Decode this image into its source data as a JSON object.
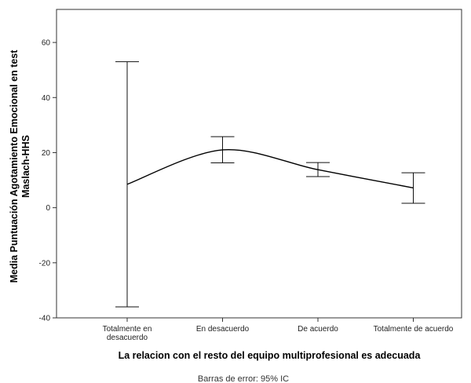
{
  "chart_data": {
    "type": "line",
    "categories": [
      "Totalmente en desacuerdo",
      "En desacuerdo",
      "De acuerdo",
      "Totalmente de acuerdo"
    ],
    "category_lines": [
      [
        "Totalmente en",
        "desacuerdo"
      ],
      [
        "En desacuerdo"
      ],
      [
        "De acuerdo"
      ],
      [
        "Totalmente de acuerdo"
      ]
    ],
    "series": [
      {
        "values": [
          8.5,
          21.0,
          13.8,
          7.2
        ],
        "ci_lower": [
          -36.0,
          16.3,
          11.3,
          1.6
        ],
        "ci_upper": [
          53.0,
          25.8,
          16.4,
          12.7
        ]
      }
    ],
    "xlabel": "La relacion con el resto del equipo multiprofesional es adecuada",
    "ylabel_lines": [
      "Media Puntuación Agotamiento Emocional en test",
      "Maslach-HHS"
    ],
    "ylim": [
      -40,
      72
    ],
    "yticks": [
      -40,
      -20,
      0,
      20,
      40,
      60
    ],
    "grid": false,
    "footnote": "Barras de error: 95% IC"
  }
}
